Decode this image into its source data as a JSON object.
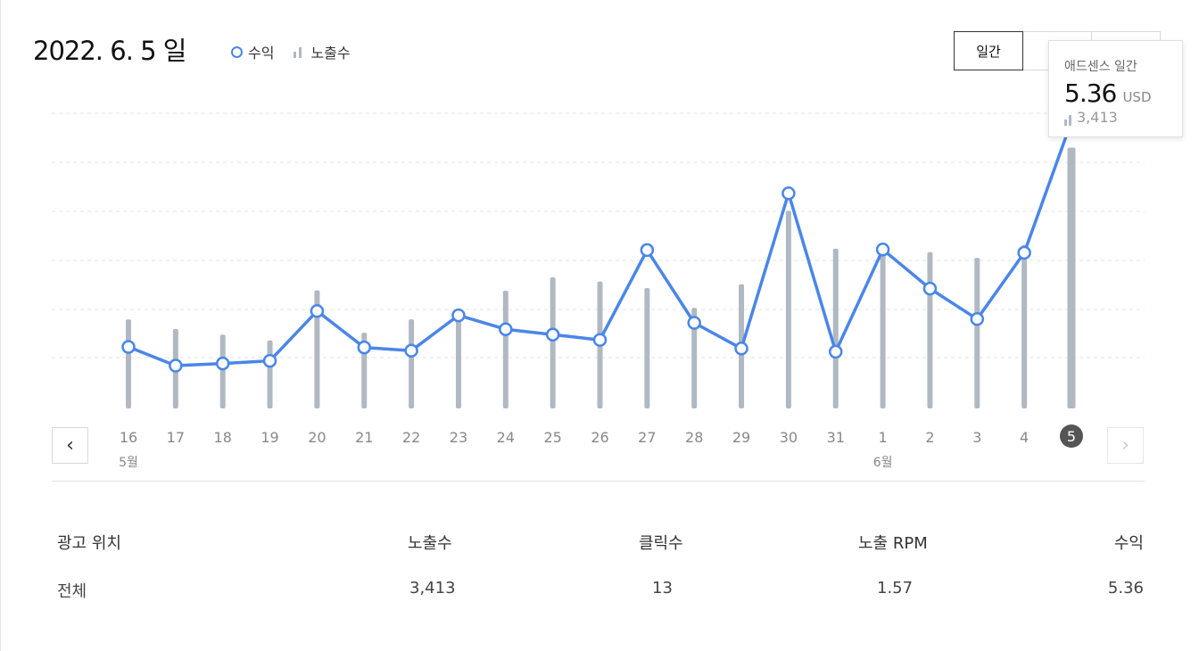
{
  "header": {
    "date_title": "2022. 6. 5 일",
    "legend": {
      "revenue": "수익",
      "impressions": "노출수"
    },
    "period_buttons": [
      "일간",
      "",
      ""
    ]
  },
  "tooltip": {
    "label": "애드센스 일간",
    "value": "5.36",
    "unit": "USD",
    "impressions": "3,413"
  },
  "chart_data": {
    "type": "line",
    "x": [
      "16",
      "17",
      "18",
      "19",
      "20",
      "21",
      "22",
      "23",
      "24",
      "25",
      "26",
      "27",
      "28",
      "29",
      "30",
      "31",
      "1",
      "2",
      "3",
      "4",
      "5"
    ],
    "month_labels": [
      {
        "index": 0,
        "label": "5월"
      },
      {
        "index": 16,
        "label": "6월"
      }
    ],
    "highlighted_index": 20,
    "series": [
      {
        "name": "수익",
        "kind": "line",
        "unit": "USD",
        "values": [
          1.15,
          0.8,
          0.84,
          0.89,
          1.82,
          1.14,
          1.08,
          1.74,
          1.48,
          1.38,
          1.28,
          2.96,
          1.6,
          1.12,
          4.02,
          1.06,
          2.97,
          2.24,
          1.67,
          2.91,
          5.36
        ]
      },
      {
        "name": "노출수",
        "kind": "bar",
        "values": [
          1165,
          1040,
          965,
          890,
          1545,
          990,
          1165,
          1210,
          1540,
          1715,
          1660,
          1575,
          1315,
          1625,
          2585,
          2090,
          2120,
          2045,
          1970,
          2140,
          3413
        ]
      }
    ],
    "ylim_revenue": [
      0,
      6.0
    ],
    "ylim_impressions": [
      0,
      4200
    ],
    "grid": true,
    "colors": {
      "line": "#4a86e8",
      "bar": "#b0b9c2",
      "grid": "#e3e3e3",
      "highlight": "#555555"
    }
  },
  "table": {
    "headers": [
      "광고 위치",
      "노출수",
      "클릭수",
      "노출 RPM",
      "수익"
    ],
    "rows": [
      [
        "전체",
        "3,413",
        "13",
        "1.57",
        "5.36"
      ]
    ]
  },
  "nav": {
    "prev_icon": "chevron-left-icon",
    "next_icon": "chevron-right-icon"
  }
}
